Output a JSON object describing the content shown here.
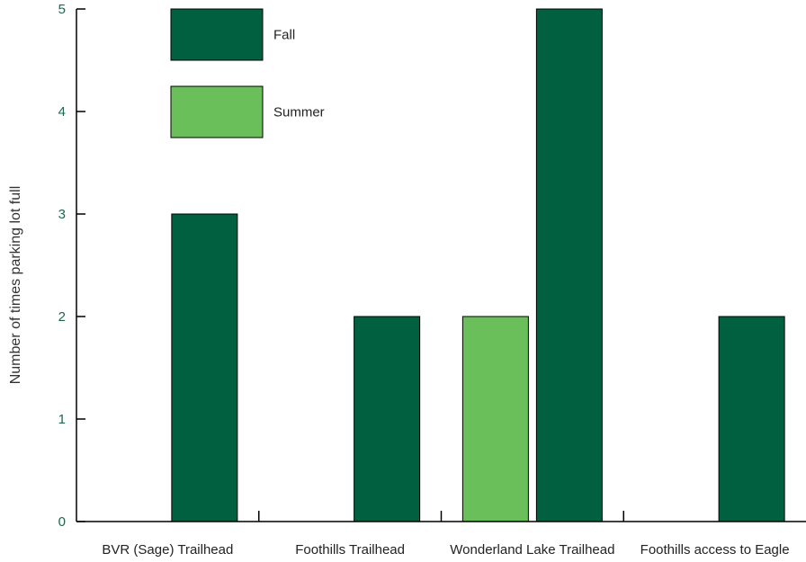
{
  "chart_data": {
    "type": "bar",
    "title": "",
    "xlabel": "",
    "ylabel": "Number of times parking lot full",
    "categories": [
      "BVR (Sage) Trailhead",
      "Foothills Trailhead",
      "Wonderland Lake Trailhead",
      "Foothills access to Eagle"
    ],
    "series": [
      {
        "name": "Summer",
        "color": "#6abf5a",
        "values": [
          0,
          0,
          2,
          0
        ]
      },
      {
        "name": "Fall",
        "color": "#006040",
        "values": [
          3,
          2,
          5,
          2
        ]
      }
    ],
    "ylim": [
      0,
      5
    ],
    "yticks": [
      0,
      1,
      2,
      3,
      4,
      5
    ],
    "grid": false,
    "legend": {
      "placement": "top-left",
      "order": [
        "Fall",
        "Summer"
      ]
    }
  }
}
